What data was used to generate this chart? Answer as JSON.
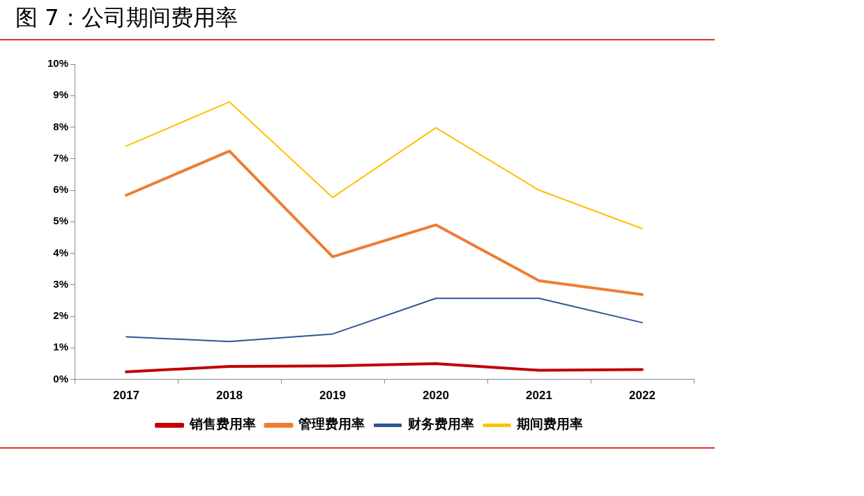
{
  "chart_data": {
    "type": "line",
    "title": "图 7：公司期间费用率",
    "categories": [
      "2017",
      "2018",
      "2019",
      "2020",
      "2021",
      "2022"
    ],
    "series": [
      {
        "name": "销售费用率",
        "color": "#c00000",
        "values": [
          0.24,
          0.41,
          0.43,
          0.5,
          0.29,
          0.31
        ]
      },
      {
        "name": "管理费用率",
        "color": "#ed7d31",
        "values": [
          5.84,
          7.24,
          3.89,
          4.9,
          3.13,
          2.69
        ]
      },
      {
        "name": "财务费用率",
        "color": "#2f5597",
        "values": [
          1.35,
          1.2,
          1.44,
          2.57,
          2.57,
          1.8
        ]
      },
      {
        "name": "期间费用率",
        "color": "#ffc000",
        "values": [
          7.4,
          8.8,
          5.77,
          7.98,
          6.0,
          4.78
        ]
      }
    ],
    "ylim": [
      0,
      10
    ],
    "yticks": [
      {
        "value": 0,
        "label": "0%"
      },
      {
        "value": 1,
        "label": "1%"
      },
      {
        "value": 2,
        "label": "2%"
      },
      {
        "value": 3,
        "label": "3%"
      },
      {
        "value": 4,
        "label": "4%"
      },
      {
        "value": 5,
        "label": "5%"
      },
      {
        "value": 6,
        "label": "6%"
      },
      {
        "value": 7,
        "label": "7%"
      },
      {
        "value": 8,
        "label": "8%"
      },
      {
        "value": 9,
        "label": "9%"
      },
      {
        "value": 10,
        "label": "10%"
      }
    ],
    "grid": false,
    "legend": "bottom"
  }
}
